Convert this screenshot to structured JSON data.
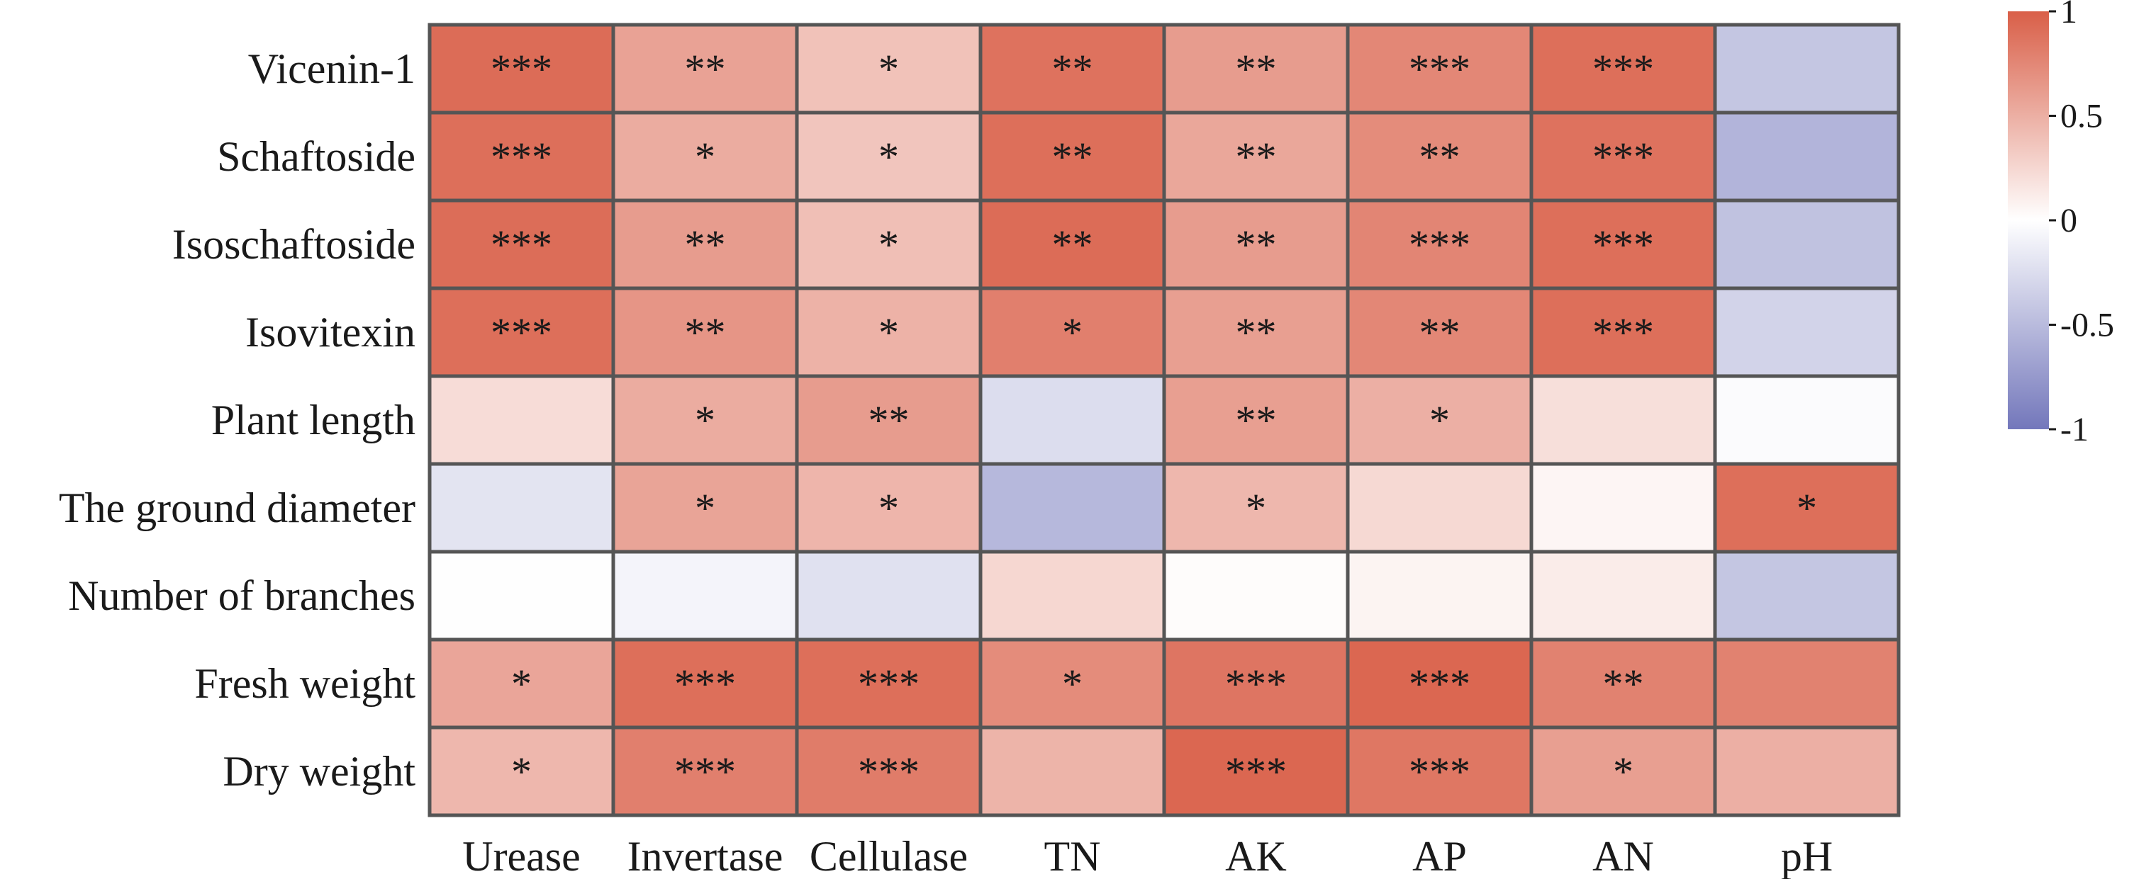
{
  "chart_data": {
    "type": "heatmap",
    "title": "",
    "xlabel": "",
    "ylabel": "",
    "rows": [
      "Vicenin-1",
      "Schaftoside",
      "Isoschaftoside",
      "Isovitexin",
      "Plant length",
      "The ground diameter",
      "Number of branches",
      "Fresh weight",
      "Dry weight"
    ],
    "columns": [
      "Urease",
      "Invertase",
      "Cellulase",
      "TN",
      "AK",
      "AP",
      "AN",
      "pH"
    ],
    "values": [
      [
        0.92,
        0.58,
        0.38,
        0.88,
        0.62,
        0.75,
        0.9,
        -0.42
      ],
      [
        0.9,
        0.52,
        0.36,
        0.9,
        0.55,
        0.72,
        0.88,
        -0.55
      ],
      [
        0.91,
        0.62,
        0.4,
        0.92,
        0.62,
        0.76,
        0.9,
        -0.45
      ],
      [
        0.9,
        0.66,
        0.48,
        0.8,
        0.6,
        0.75,
        0.9,
        -0.32
      ],
      [
        0.22,
        0.52,
        0.62,
        -0.25,
        0.6,
        0.5,
        0.2,
        -0.03
      ],
      [
        -0.2,
        0.57,
        0.46,
        -0.52,
        0.45,
        0.24,
        0.06,
        0.9
      ],
      [
        -0.01,
        -0.08,
        -0.22,
        0.25,
        0.02,
        0.07,
        0.12,
        -0.42
      ],
      [
        0.56,
        0.9,
        0.9,
        0.72,
        0.86,
        0.95,
        0.78,
        0.78
      ],
      [
        0.45,
        0.8,
        0.82,
        0.47,
        0.95,
        0.85,
        0.6,
        0.5
      ]
    ],
    "significance": [
      [
        "***",
        "**",
        "*",
        "**",
        "**",
        "***",
        "***",
        ""
      ],
      [
        "***",
        "*",
        "*",
        "**",
        "**",
        "**",
        "***",
        ""
      ],
      [
        "***",
        "**",
        "*",
        "**",
        "**",
        "***",
        "***",
        ""
      ],
      [
        "***",
        "**",
        "*",
        "*",
        "**",
        "**",
        "***",
        ""
      ],
      [
        "",
        "*",
        "**",
        "",
        "**",
        "*",
        "",
        ""
      ],
      [
        "",
        "*",
        "*",
        "",
        "*",
        "",
        "",
        "*"
      ],
      [
        "",
        "",
        "",
        "",
        "",
        "",
        "",
        ""
      ],
      [
        "*",
        "***",
        "***",
        "*",
        "***",
        "***",
        "**",
        ""
      ],
      [
        "*",
        "***",
        "***",
        "",
        "***",
        "***",
        "*",
        ""
      ]
    ],
    "colorbar": {
      "range": [
        -1,
        1
      ],
      "ticks": [
        1,
        0.5,
        0,
        -0.5,
        -1
      ],
      "tick_labels": [
        "1",
        "0.5",
        "0",
        "-0.5",
        "-1"
      ],
      "colors": {
        "high": "#d95f48",
        "mid": "#ffffff",
        "low": "#7377bb"
      }
    },
    "grid_color": "#555555"
  }
}
